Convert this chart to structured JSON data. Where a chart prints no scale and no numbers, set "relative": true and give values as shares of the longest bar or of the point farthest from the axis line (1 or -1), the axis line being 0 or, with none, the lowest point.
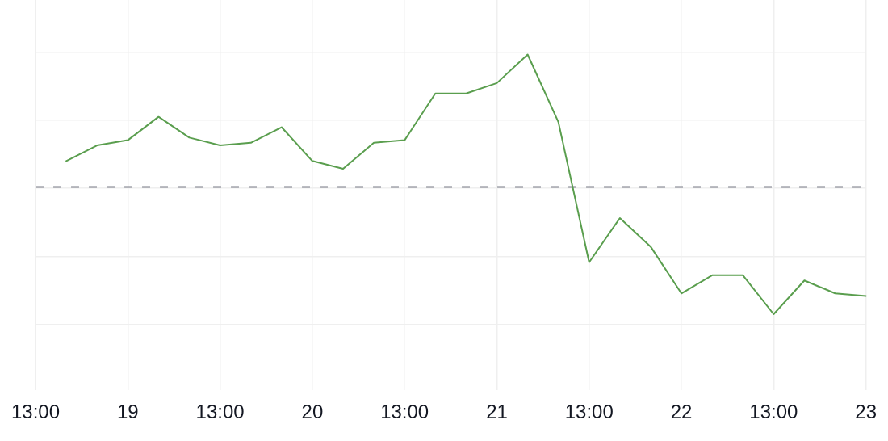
{
  "chart_data": {
    "type": "line",
    "relative": true,
    "categories": [
      "13:00",
      null,
      null,
      "19",
      null,
      null,
      "13:00",
      null,
      null,
      "20",
      null,
      null,
      "13:00",
      null,
      null,
      "21",
      null,
      null,
      "13:00",
      null,
      null,
      "22",
      null,
      null,
      "13:00",
      null,
      null,
      "23"
    ],
    "series": [
      {
        "color": "#5a9e4e",
        "values": [
          null,
          0.59,
          0.65,
          0.67,
          0.76,
          0.68,
          0.65,
          0.66,
          0.72,
          0.59,
          0.56,
          0.66,
          0.67,
          0.85,
          0.85,
          0.89,
          1,
          0.74,
          0.2,
          0.37,
          0.26,
          0.08,
          0.15,
          0.15,
          0,
          0.13,
          0.08,
          0.07
        ]
      }
    ],
    "ref_lines": [
      {
        "axis": "y",
        "value": 0.49,
        "color": "#787b86",
        "line_style": "dashed"
      }
    ],
    "grid": true
  }
}
